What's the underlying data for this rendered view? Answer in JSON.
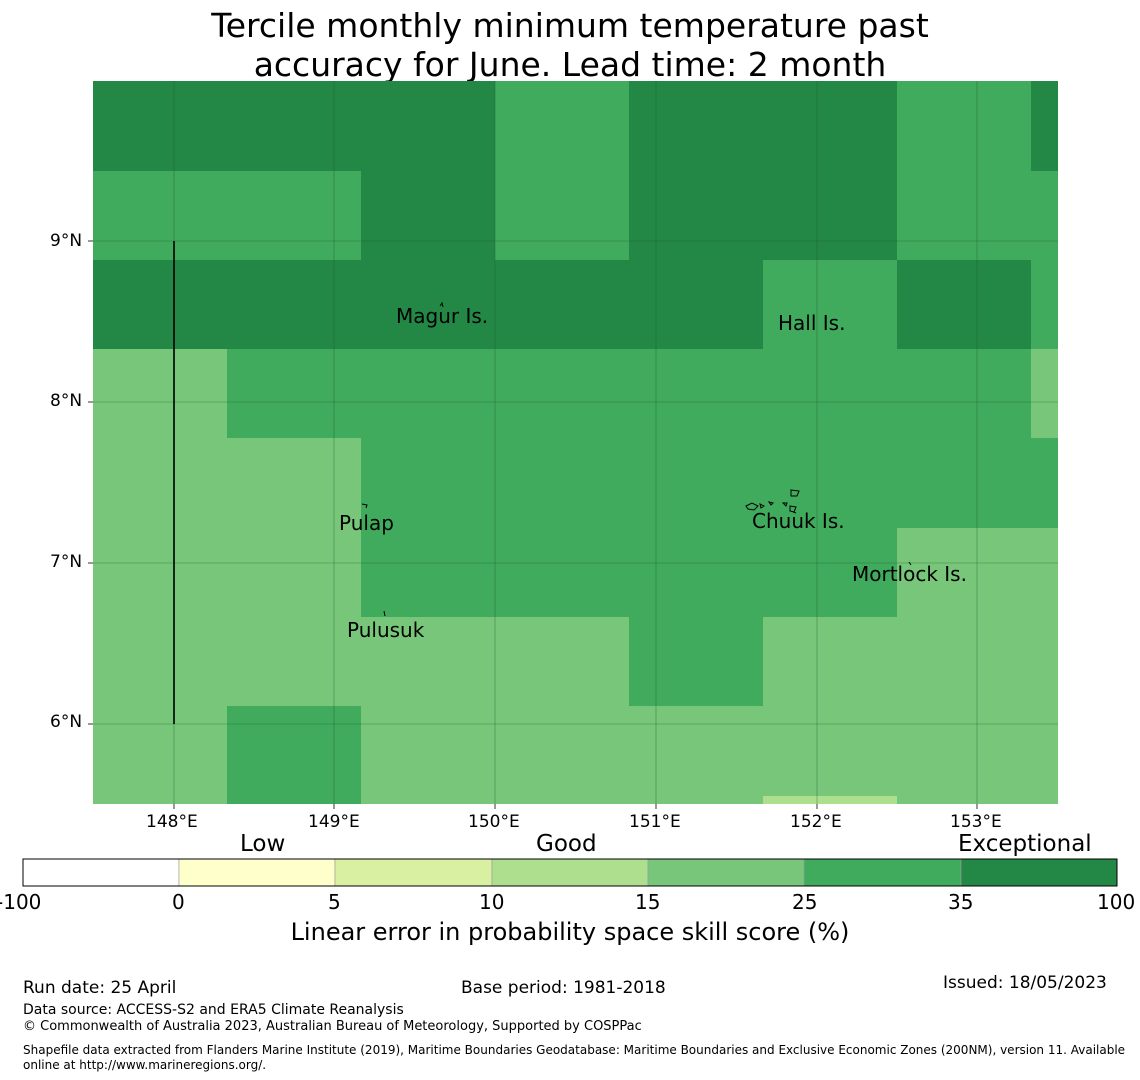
{
  "title": {
    "line1": "Tercile monthly minimum temperature past",
    "line2": "accuracy for June. Lead time: 2 month"
  },
  "map": {
    "lon_labels": [
      "148°E",
      "149°E",
      "150°E",
      "151°E",
      "152°E",
      "153°E"
    ],
    "lat_labels": [
      "9°N",
      "8°N",
      "7°N",
      "6°N"
    ],
    "places": [
      {
        "name": "Magur Is."
      },
      {
        "name": "Hall Is."
      },
      {
        "name": "Pulap"
      },
      {
        "name": "Chuuk Is."
      },
      {
        "name": "Mortlock Is."
      },
      {
        "name": "Pulusuk"
      }
    ],
    "colors": {
      "exceptional": "#238846",
      "35": "#41ab5d",
      "25": "#78c67a",
      "15": "#addf8e",
      "10": "#d9f0a3",
      "5": "#ffffcc",
      "0": "#ffffff"
    }
  },
  "colorbar": {
    "categories": [
      "Low",
      "Good",
      "Exceptional"
    ],
    "ticks": [
      "-100",
      "0",
      "5",
      "10",
      "15",
      "25",
      "35",
      "100"
    ],
    "colors": [
      "#ffffff",
      "#ffffcc",
      "#d9f0a3",
      "#addf8e",
      "#78c67a",
      "#41ab5d",
      "#238846"
    ],
    "title": "Linear error in probability space skill score (%)"
  },
  "footer": {
    "run_date": "Run date: 25 April",
    "base_period": "Base period: 1981-2018",
    "issued": "Issued: 18/05/2023",
    "data_source": "Data source: ACCESS-S2 and ERA5 Climate Reanalysis",
    "copyright": "© Commonwealth of Australia 2023, Australian Bureau of Meteorology, Supported by COSPPac",
    "shapefile_line1": "Shapefile data extracted from Flanders Marine Institute (2019), Maritime Boundaries Geodatabase: Maritime Boundaries and Exclusive Economic Zones (200NM), version 11. Available",
    "shapefile_line2": "online at http://www.marineregions.org/."
  }
}
